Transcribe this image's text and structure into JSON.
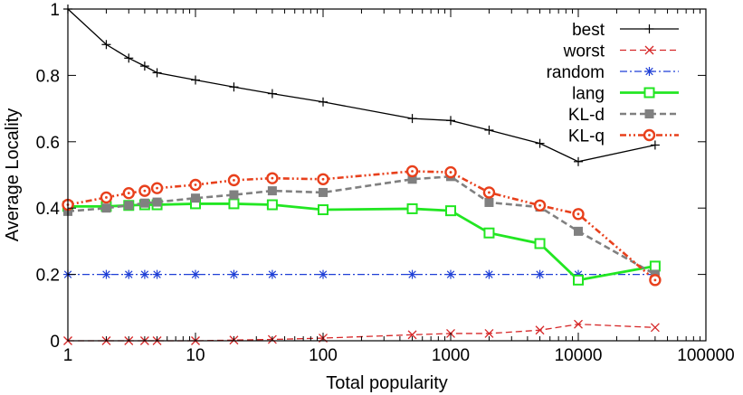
{
  "chart_data": {
    "type": "line",
    "title": "",
    "xlabel": "Total popularity",
    "ylabel": "Average Locality",
    "xscale": "log",
    "xlim": [
      1,
      100000
    ],
    "ylim": [
      0,
      1
    ],
    "xticks": [
      1,
      10,
      100,
      1000,
      10000,
      100000
    ],
    "xtick_labels": [
      "1",
      "10",
      "100",
      "1000",
      "10000",
      "100000"
    ],
    "yticks": [
      0,
      0.2,
      0.4,
      0.6,
      0.8,
      1
    ],
    "ytick_labels": [
      "0",
      "0.2",
      "0.4",
      "0.6",
      "0.8",
      "1"
    ],
    "grid": false,
    "legend_position": "top-right",
    "series": [
      {
        "name": "best",
        "color": "#000000",
        "dash": "solid",
        "marker": "plus",
        "x": [
          1,
          2,
          3,
          4,
          5,
          10,
          20,
          40,
          100,
          500,
          1000,
          2000,
          5000,
          10000,
          40000
        ],
        "y": [
          1.0,
          0.893,
          0.852,
          0.828,
          0.808,
          0.786,
          0.765,
          0.745,
          0.72,
          0.67,
          0.664,
          0.635,
          0.595,
          0.54,
          0.59
        ]
      },
      {
        "name": "worst",
        "color": "#d62728",
        "dash": "dashed",
        "marker": "x",
        "x": [
          1,
          2,
          3,
          4,
          5,
          10,
          20,
          40,
          100,
          500,
          1000,
          2000,
          5000,
          10000,
          40000
        ],
        "y": [
          0.0,
          0.0,
          0.0,
          0.0,
          0.0,
          0.0,
          0.002,
          0.004,
          0.008,
          0.018,
          0.022,
          0.022,
          0.032,
          0.05,
          0.04
        ]
      },
      {
        "name": "random",
        "color": "#1f3fd6",
        "dash": "dashdot",
        "marker": "star",
        "x": [
          1,
          2,
          3,
          4,
          5,
          10,
          20,
          40,
          100,
          500,
          1000,
          2000,
          5000,
          10000,
          40000
        ],
        "y": [
          0.2,
          0.2,
          0.2,
          0.2,
          0.2,
          0.2,
          0.2,
          0.2,
          0.2,
          0.2,
          0.2,
          0.2,
          0.2,
          0.2,
          0.2
        ]
      },
      {
        "name": "lang",
        "color": "#22e622",
        "dash": "solid",
        "marker": "square-open",
        "x": [
          1,
          2,
          3,
          4,
          5,
          10,
          20,
          40,
          100,
          500,
          1000,
          2000,
          5000,
          10000,
          40000
        ],
        "y": [
          0.405,
          0.405,
          0.408,
          0.41,
          0.41,
          0.413,
          0.413,
          0.41,
          0.395,
          0.398,
          0.392,
          0.325,
          0.293,
          0.183,
          0.225
        ]
      },
      {
        "name": "KL-d",
        "color": "#808080",
        "dash": "dashed",
        "marker": "square-filled",
        "x": [
          1,
          2,
          3,
          4,
          5,
          10,
          20,
          40,
          100,
          500,
          1000,
          2000,
          5000,
          10000,
          40000
        ],
        "y": [
          0.39,
          0.4,
          0.408,
          0.415,
          0.418,
          0.43,
          0.44,
          0.452,
          0.447,
          0.487,
          0.495,
          0.417,
          0.403,
          0.33,
          0.2
        ]
      },
      {
        "name": "KL-q",
        "color": "#e8401c",
        "dash": "dashdotdot",
        "marker": "circle-open",
        "x": [
          1,
          2,
          3,
          4,
          5,
          10,
          20,
          40,
          100,
          500,
          1000,
          2000,
          5000,
          10000,
          40000
        ],
        "y": [
          0.41,
          0.432,
          0.445,
          0.452,
          0.46,
          0.47,
          0.484,
          0.49,
          0.487,
          0.511,
          0.508,
          0.447,
          0.408,
          0.382,
          0.183
        ]
      }
    ]
  }
}
